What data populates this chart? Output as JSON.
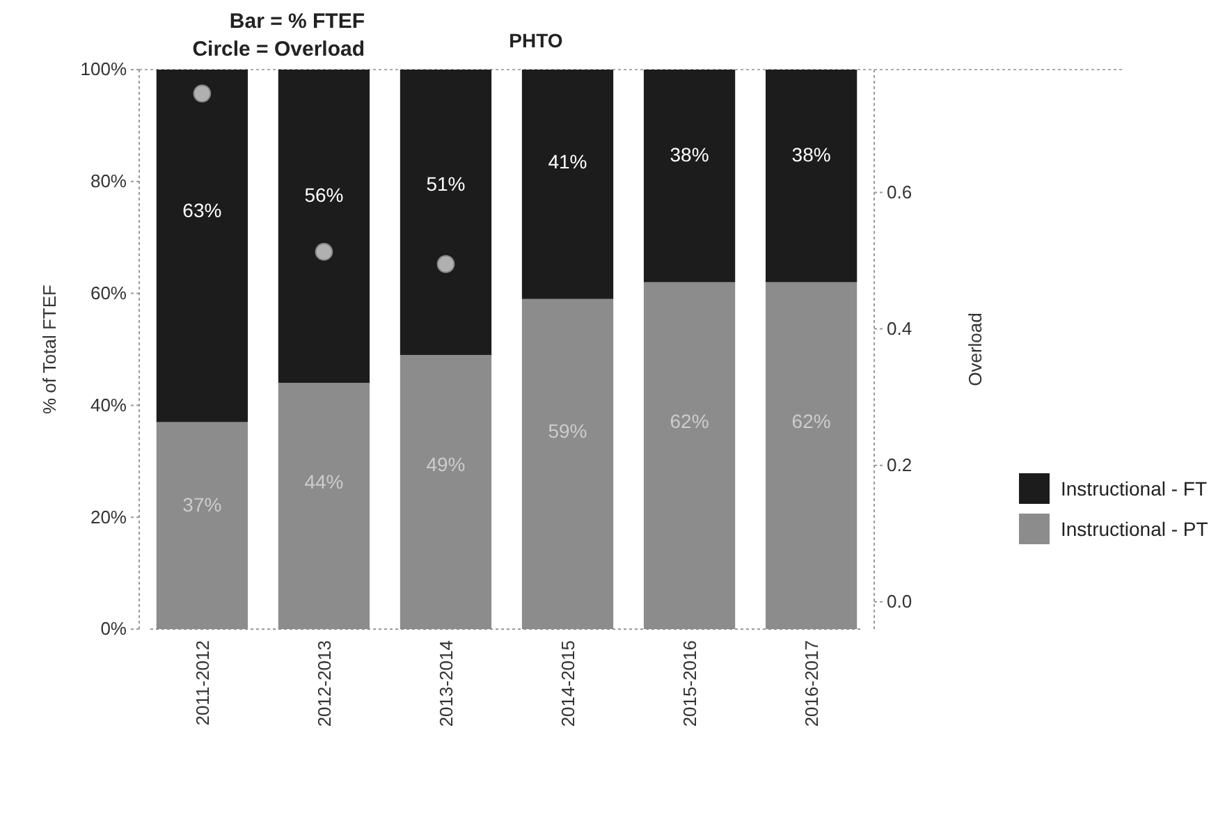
{
  "chart_data": {
    "type": "bar",
    "title": "PHTO",
    "annotations": [
      "Bar = % FTEF",
      "Circle = Overload"
    ],
    "categories": [
      "2011-2012",
      "2012-2013",
      "2013-2014",
      "2014-2015",
      "2015-2016",
      "2016-2017"
    ],
    "stacked": true,
    "ylabel": "% of Total FTEF",
    "y2label": "Overload",
    "ylim": [
      0,
      100
    ],
    "yticks": [
      {
        "value": 0,
        "label": "0%"
      },
      {
        "value": 20,
        "label": "20%"
      },
      {
        "value": 40,
        "label": "40%"
      },
      {
        "value": 60,
        "label": "60%"
      },
      {
        "value": 80,
        "label": "80%"
      },
      {
        "value": 100,
        "label": "100%"
      }
    ],
    "y2lim": [
      -0.04,
      0.78
    ],
    "y2ticks": [
      {
        "value": 0,
        "label": "0.0"
      },
      0.2,
      0.4,
      0.6
    ],
    "series": [
      {
        "name": "Instructional - PT",
        "color": "#8c8c8c",
        "values": [
          37,
          44,
          49,
          59,
          62,
          62
        ],
        "value_labels": [
          "37%",
          "44%",
          "49%",
          "59%",
          "62%",
          "62%"
        ]
      },
      {
        "name": "Instructional - FT",
        "color": "#1c1c1c",
        "values": [
          63,
          56,
          51,
          41,
          38,
          38
        ],
        "value_labels": [
          "63%",
          "56%",
          "51%",
          "41%",
          "38%",
          "38%"
        ]
      },
      {
        "type": "scatter",
        "axis": "y2",
        "color": "#b0b0b0",
        "x": [
          "2011-2012",
          "2012-2013",
          "2013-2014",
          "2014-2015",
          "2015-2016",
          "2016-2017"
        ],
        "values": [
          0.745,
          0.513,
          0.495,
          null,
          null,
          null
        ]
      }
    ],
    "legend": "right",
    "marker": "circle",
    "grid": false
  }
}
